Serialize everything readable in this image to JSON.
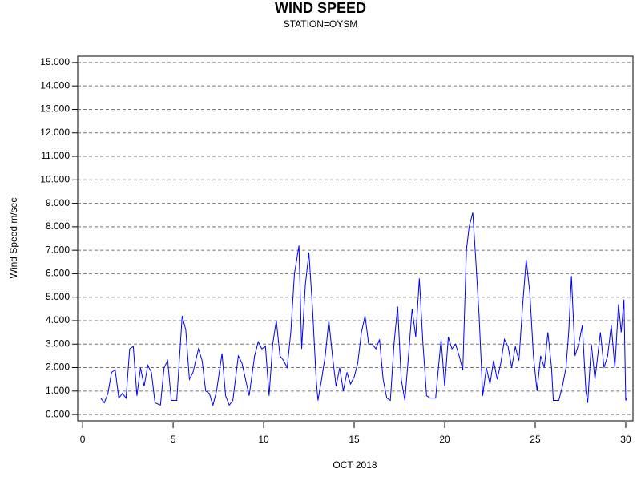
{
  "chart_data": {
    "type": "line",
    "title": "WIND SPEED",
    "subtitle": "STATION=OYSM",
    "x_label": "OCT 2018",
    "y_label": "Wind Speed m/sec",
    "grid": true,
    "xlim": [
      -0.27,
      30.4
    ],
    "ylim": [
      -0.27,
      15.27
    ],
    "xticks": [
      0,
      5,
      10,
      15,
      20,
      25,
      30
    ],
    "yticks": [
      {
        "value": 0,
        "label": "0.000"
      },
      {
        "value": 1,
        "label": "1.000"
      },
      {
        "value": 2,
        "label": "2.000"
      },
      {
        "value": 3,
        "label": "3.000"
      },
      {
        "value": 4,
        "label": "4.000"
      },
      {
        "value": 5,
        "label": "5.000"
      },
      {
        "value": 6,
        "label": "6.000"
      },
      {
        "value": 7,
        "label": "7.000"
      },
      {
        "value": 8,
        "label": "8.000"
      },
      {
        "value": 9,
        "label": "9.000"
      },
      {
        "value": 10,
        "label": "10.000"
      },
      {
        "value": 11,
        "label": "11.000"
      },
      {
        "value": 12,
        "label": "12.000"
      },
      {
        "value": 13,
        "label": "13.000"
      },
      {
        "value": 14,
        "label": "14.000"
      },
      {
        "value": 15,
        "label": "15.000"
      }
    ],
    "color": "#0000ff",
    "x": [
      1.0,
      1.2,
      1.4,
      1.6,
      1.8,
      2.0,
      2.2,
      2.4,
      2.6,
      2.8,
      3.0,
      3.2,
      3.4,
      3.6,
      3.8,
      4.0,
      4.3,
      4.5,
      4.7,
      4.9,
      5.2,
      5.5,
      5.7,
      5.9,
      6.1,
      6.4,
      6.6,
      6.8,
      7.0,
      7.2,
      7.4,
      7.7,
      7.9,
      8.1,
      8.3,
      8.6,
      8.8,
      9.0,
      9.2,
      9.5,
      9.7,
      9.9,
      10.1,
      10.3,
      10.5,
      10.7,
      10.9,
      11.1,
      11.3,
      11.5,
      11.7,
      11.95,
      12.1,
      12.3,
      12.5,
      12.7,
      12.9,
      13.0,
      13.2,
      13.4,
      13.6,
      13.8,
      14.0,
      14.2,
      14.4,
      14.6,
      14.8,
      15.0,
      15.2,
      15.4,
      15.6,
      15.8,
      16.0,
      16.2,
      16.4,
      16.6,
      16.8,
      17.0,
      17.2,
      17.4,
      17.6,
      17.8,
      18.0,
      18.2,
      18.4,
      18.6,
      18.8,
      19.0,
      19.2,
      19.5,
      19.8,
      20.0,
      20.2,
      20.4,
      20.6,
      20.8,
      21.0,
      21.2,
      21.35,
      21.55,
      21.7,
      21.9,
      22.1,
      22.3,
      22.5,
      22.7,
      22.9,
      23.1,
      23.3,
      23.5,
      23.7,
      23.9,
      24.1,
      24.3,
      24.5,
      24.7,
      24.9,
      25.1,
      25.3,
      25.5,
      25.7,
      25.9,
      26.0,
      26.3,
      26.5,
      26.7,
      26.85,
      27.0,
      27.2,
      27.4,
      27.6,
      27.8,
      27.9,
      28.1,
      28.3,
      28.6,
      28.8,
      29.0,
      29.2,
      29.4,
      29.6,
      29.75,
      29.9,
      30.0,
      30.05
    ],
    "values": [
      0.7,
      0.5,
      0.9,
      1.8,
      1.9,
      0.7,
      0.9,
      0.7,
      2.8,
      2.9,
      0.8,
      2.0,
      1.2,
      2.1,
      1.8,
      0.5,
      0.4,
      2.0,
      2.3,
      0.6,
      0.6,
      4.2,
      3.6,
      1.5,
      1.8,
      2.8,
      2.3,
      1.0,
      0.9,
      0.4,
      1.0,
      2.6,
      0.8,
      0.4,
      0.6,
      2.5,
      2.2,
      1.5,
      0.8,
      2.5,
      3.1,
      2.8,
      2.9,
      0.8,
      3.0,
      4.0,
      2.5,
      2.3,
      2.0,
      3.5,
      6.0,
      7.2,
      2.8,
      5.5,
      6.9,
      4.5,
      1.5,
      0.6,
      1.5,
      2.5,
      4.0,
      2.5,
      1.2,
      2.0,
      1.0,
      1.8,
      1.3,
      1.6,
      2.2,
      3.5,
      4.2,
      3.0,
      3.0,
      2.8,
      3.2,
      1.5,
      0.7,
      0.6,
      3.0,
      4.6,
      1.5,
      0.6,
      2.5,
      4.5,
      3.3,
      5.8,
      3.0,
      0.8,
      0.7,
      0.7,
      3.2,
      1.2,
      3.3,
      2.8,
      3.0,
      2.5,
      1.9,
      7.0,
      8.0,
      8.6,
      6.8,
      4.2,
      0.8,
      2.0,
      1.3,
      2.3,
      1.5,
      2.2,
      3.2,
      2.9,
      2.0,
      2.9,
      2.3,
      4.6,
      6.6,
      5.2,
      2.5,
      1.0,
      2.5,
      2.0,
      3.5,
      2.0,
      0.6,
      0.6,
      1.2,
      2.0,
      3.5,
      5.9,
      2.5,
      3.0,
      3.8,
      1.0,
      0.5,
      3.0,
      1.5,
      3.5,
      2.0,
      2.5,
      3.8,
      2.0,
      4.7,
      3.5,
      4.9,
      0.6,
      0.7
    ]
  }
}
